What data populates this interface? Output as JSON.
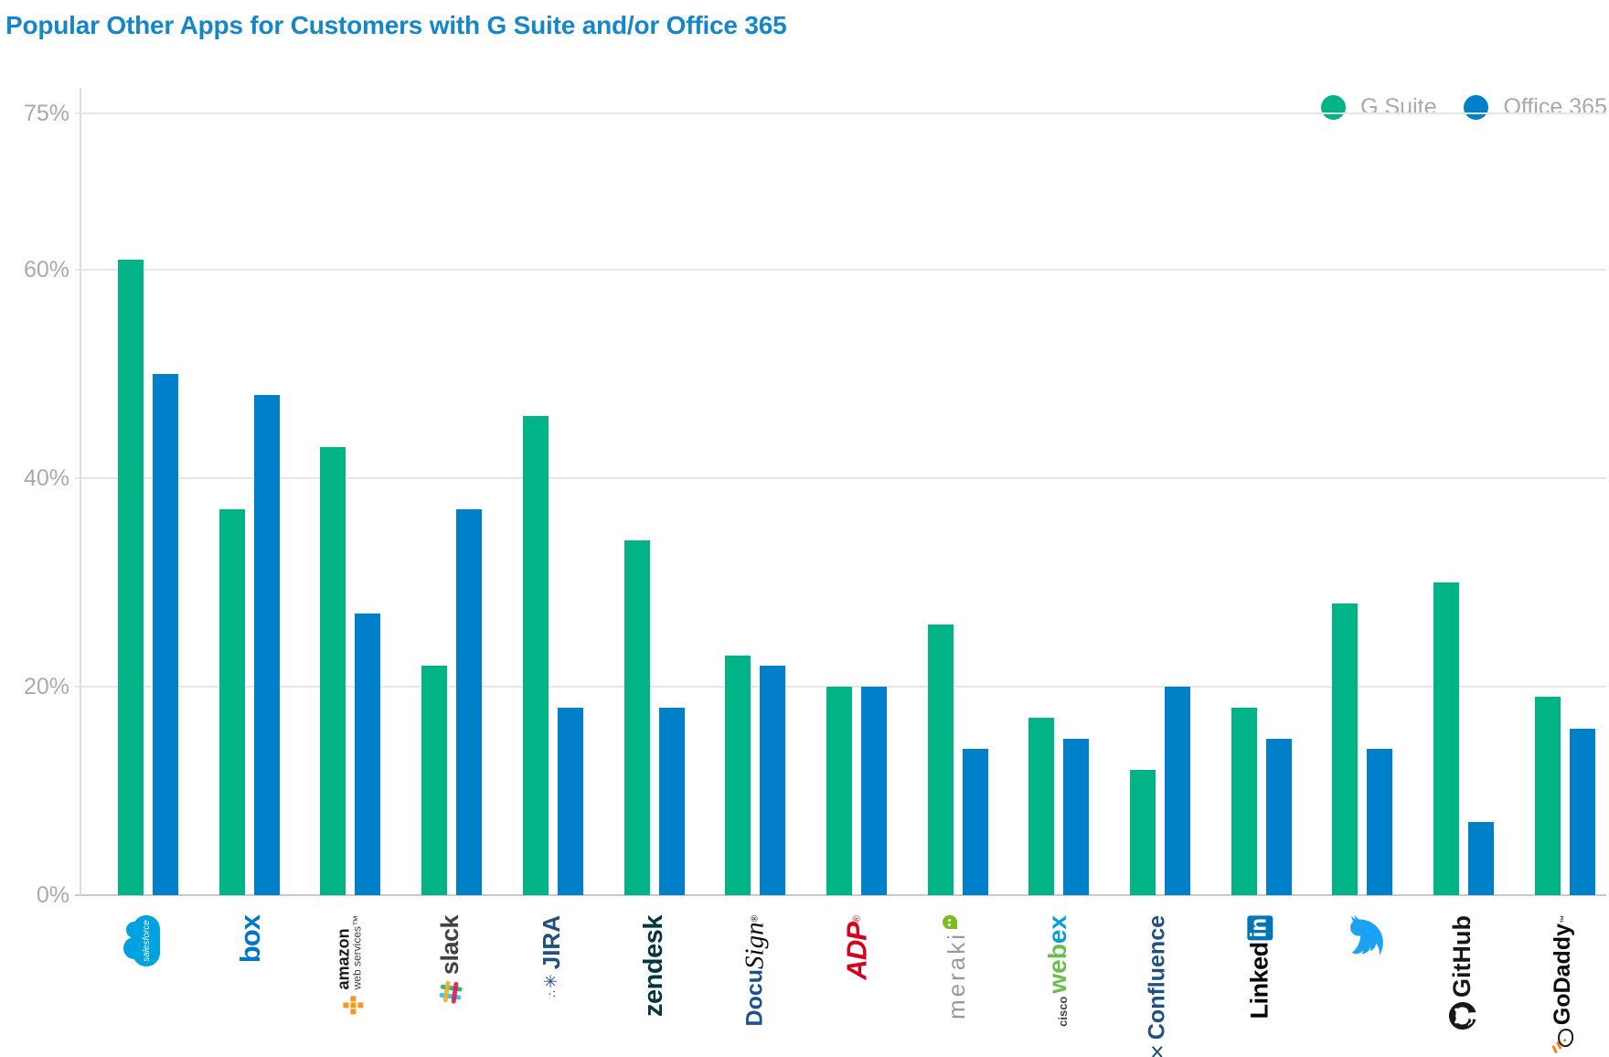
{
  "title": "Popular Other Apps for Customers with G Suite and/or Office 365",
  "title_color": "#1486c9",
  "legend": [
    {
      "label": "G Suite",
      "color": "#00b487"
    },
    {
      "label": "Office 365",
      "color": "#0080c8"
    }
  ],
  "y_axis": {
    "ticks": [
      "75%",
      "60%",
      "40%",
      "20%",
      "0%"
    ],
    "tick_values": [
      75,
      60,
      40,
      20,
      0
    ],
    "label_color": "#a7a9ac",
    "gridline_color": "#e6e6e6"
  },
  "chart_data": {
    "type": "bar",
    "title": "Popular Other Apps for Customers with G Suite and/or Office 365",
    "categories": [
      "Salesforce",
      "Box",
      "Amazon Web Services",
      "Slack",
      "JIRA",
      "Zendesk",
      "DocuSign",
      "ADP",
      "Meraki",
      "Cisco Webex",
      "Confluence",
      "LinkedIn",
      "Twitter",
      "GitHub",
      "GoDaddy"
    ],
    "series": [
      {
        "name": "G Suite",
        "color": "#00b487",
        "values": [
          61,
          37,
          43,
          22,
          46,
          34,
          23,
          20,
          26,
          17,
          12,
          18,
          28,
          30,
          19
        ]
      },
      {
        "name": "Office 365",
        "color": "#0080c8",
        "values": [
          50,
          48,
          27,
          37,
          18,
          18,
          22,
          20,
          14,
          15,
          20,
          15,
          14,
          7,
          16
        ]
      }
    ],
    "xlabel": "",
    "ylabel": "",
    "ylim": [
      0,
      75
    ],
    "ytick_values": [
      75,
      60,
      40,
      20,
      0
    ],
    "grid": true,
    "legend_position": "top-right",
    "unit": "%"
  },
  "logos": [
    {
      "id": "salesforce",
      "text": "salesforce",
      "color": "#00a1e0"
    },
    {
      "id": "box",
      "text": "box",
      "color": "#0075c9"
    },
    {
      "id": "aws",
      "line1": "amazon",
      "line2": "web services™",
      "color": "#1a1a1a",
      "accent": "#f8991d"
    },
    {
      "id": "slack",
      "text": "slack",
      "color": "#443f42"
    },
    {
      "id": "jira",
      "icon": "∴",
      "icon2": "✳",
      "text": "JIRA",
      "color": "#205081"
    },
    {
      "id": "zendesk",
      "text": "zendesk",
      "color": "#03363d"
    },
    {
      "id": "docusign",
      "part1": "Docu",
      "part2": "Sign",
      "reg": "®",
      "color1": "#1d4f91",
      "color2": "#0b0b0b"
    },
    {
      "id": "adp",
      "text": "ADP",
      "reg": "®",
      "color": "#d6001c"
    },
    {
      "id": "meraki",
      "text": "meraki",
      "color": "#97999b",
      "accent": "#78be20"
    },
    {
      "id": "webex",
      "part0": "cisco",
      "part1": "web",
      "part2": "ex",
      "color0": "#414042",
      "color1": "#6abf4b",
      "color2": "#049fd9"
    },
    {
      "id": "confluence",
      "icon": "✕",
      "text": "Confluence",
      "color": "#205081"
    },
    {
      "id": "linkedin",
      "part1": "Linked",
      "part2": "in",
      "color1": "#060606",
      "badge": "#0077b5"
    },
    {
      "id": "twitter",
      "color": "#1da1f2"
    },
    {
      "id": "github",
      "text": "GitHub",
      "color": "#191717"
    },
    {
      "id": "godaddy",
      "text": "GoDaddy",
      "tm": "™",
      "color": "#0b0b0b",
      "accent": "#f5821f"
    }
  ]
}
